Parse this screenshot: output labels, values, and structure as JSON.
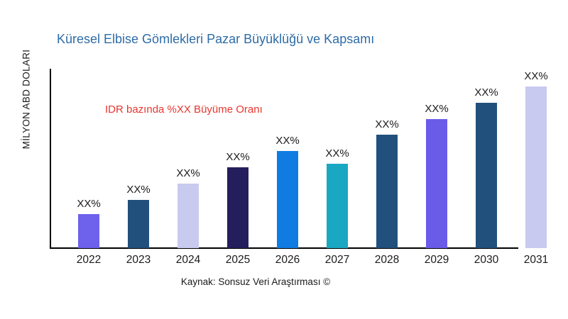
{
  "colors": {
    "title_text": "#2E6CA6",
    "annotation_text": "#E8352E",
    "axis": "#000000",
    "label_text": "#1a1a1a"
  },
  "chart_data": {
    "type": "bar",
    "title": "Küresel Elbise Gömlekleri Pazar Büyüklüğü ve Kapsamı",
    "ylabel": "MİLYON ABD DOLARI",
    "xlabel": "",
    "annotation": "IDR bazında %XX Büyüme Oranı",
    "source": "Kaynak: Sonsuz Veri Araştırması ©",
    "categories": [
      "2022",
      "2023",
      "2024",
      "2025",
      "2026",
      "2027",
      "2028",
      "2029",
      "2030",
      "2031"
    ],
    "values": [
      21,
      30,
      40,
      50,
      60,
      52,
      70,
      80,
      90,
      100
    ],
    "value_scale_note": "no numeric axis scale shown; values are relative bar heights with tallest bar (2031) = 100",
    "ylim": [
      0,
      111
    ],
    "bar_labels": [
      "XX%",
      "XX%",
      "XX%",
      "XX%",
      "XX%",
      "XX%",
      "XX%",
      "XX%",
      "XX%",
      "XX%"
    ],
    "bar_colors": [
      "#6E61EC",
      "#22507C",
      "#C9CAEF",
      "#251E5C",
      "#107CE2",
      "#1AA7C2",
      "#22507C",
      "#6A5CE8",
      "#22507C",
      "#C9CAEF"
    ],
    "grid": false,
    "legend": false
  }
}
